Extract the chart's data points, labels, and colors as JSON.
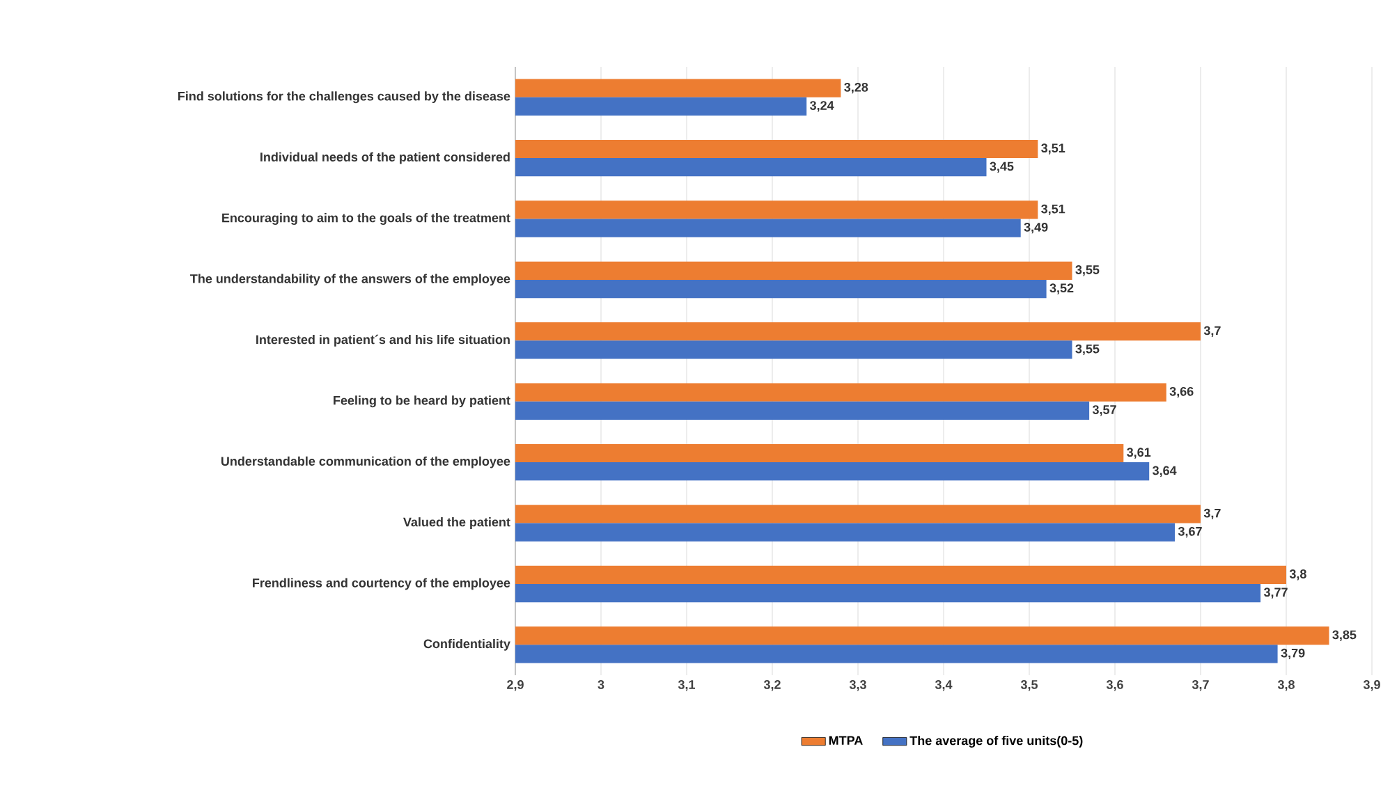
{
  "chart_data": {
    "type": "bar",
    "orientation": "horizontal",
    "categories": [
      "Find solutions for the challenges caused by the disease",
      "Individual needs of the patient considered",
      "Encouraging to aim to the goals of the treatment",
      "The understandability of the answers of the employee",
      "Interested in patient´s and his life situation",
      "Feeling to be heard by patient",
      "Understandable communication of the employee",
      "Valued the patient",
      "Frendliness and courtency of the employee",
      "Confidentiality"
    ],
    "series": [
      {
        "name": "MTPA",
        "color": "#ed7d31",
        "values": [
          3.28,
          3.51,
          3.51,
          3.55,
          3.7,
          3.66,
          3.61,
          3.7,
          3.8,
          3.85
        ],
        "value_labels": [
          "3,28",
          "3,51",
          "3,51",
          "3,55",
          "3,7",
          "3,66",
          "3,61",
          "3,7",
          "3,8",
          "3,85"
        ]
      },
      {
        "name": "The average of five units(0-5)",
        "color": "#4472c4",
        "values": [
          3.24,
          3.45,
          3.49,
          3.52,
          3.55,
          3.57,
          3.64,
          3.67,
          3.77,
          3.79
        ],
        "value_labels": [
          "3,24",
          "3,45",
          "3,49",
          "3,52",
          "3,55",
          "3,57",
          "3,64",
          "3,67",
          "3,77",
          "3,79"
        ]
      }
    ],
    "xlim": [
      2.9,
      3.9
    ],
    "xticks": [
      {
        "value": 2.9,
        "label": "2,9"
      },
      3,
      {
        "value": 3.1,
        "label": "3,1"
      },
      {
        "value": 3.2,
        "label": "3,2"
      },
      {
        "value": 3.3,
        "label": "3,3"
      },
      {
        "value": 3.4,
        "label": "3,4"
      },
      {
        "value": 3.5,
        "label": "3,5"
      },
      {
        "value": 3.6,
        "label": "3,6"
      },
      {
        "value": 3.7,
        "label": "3,7"
      },
      {
        "value": 3.8,
        "label": "3,8"
      },
      {
        "value": 3.9,
        "label": "3,9"
      }
    ],
    "grid": "x",
    "legend": "bottom"
  }
}
